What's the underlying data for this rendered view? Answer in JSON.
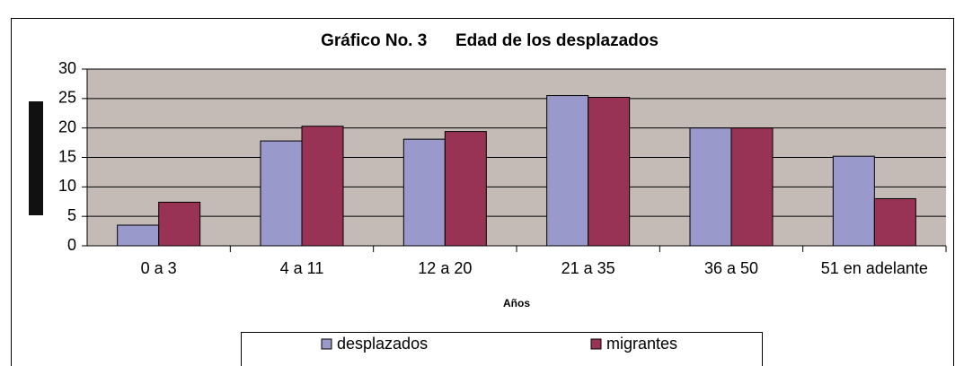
{
  "chart_data": {
    "type": "bar",
    "title": "Gráfico No. 3      Edad de los desplazados",
    "x_label": "Años",
    "categories": [
      "0 a 3",
      "4 a 11",
      "12 a 20",
      "21 a 35",
      "36 a 50",
      "51 en adelante"
    ],
    "series": [
      {
        "name": "desplazados",
        "color": "#9999cc",
        "values": [
          3.5,
          17.8,
          18.1,
          25.5,
          20,
          15.2
        ]
      },
      {
        "name": "migrantes",
        "color": "#993355",
        "values": [
          7.4,
          20.3,
          19.4,
          25.2,
          20,
          8
        ]
      }
    ],
    "ylim": [
      0,
      30
    ],
    "yticks": [
      0,
      5,
      10,
      15,
      20,
      25,
      30
    ],
    "grid": true,
    "legend": "bottom"
  }
}
